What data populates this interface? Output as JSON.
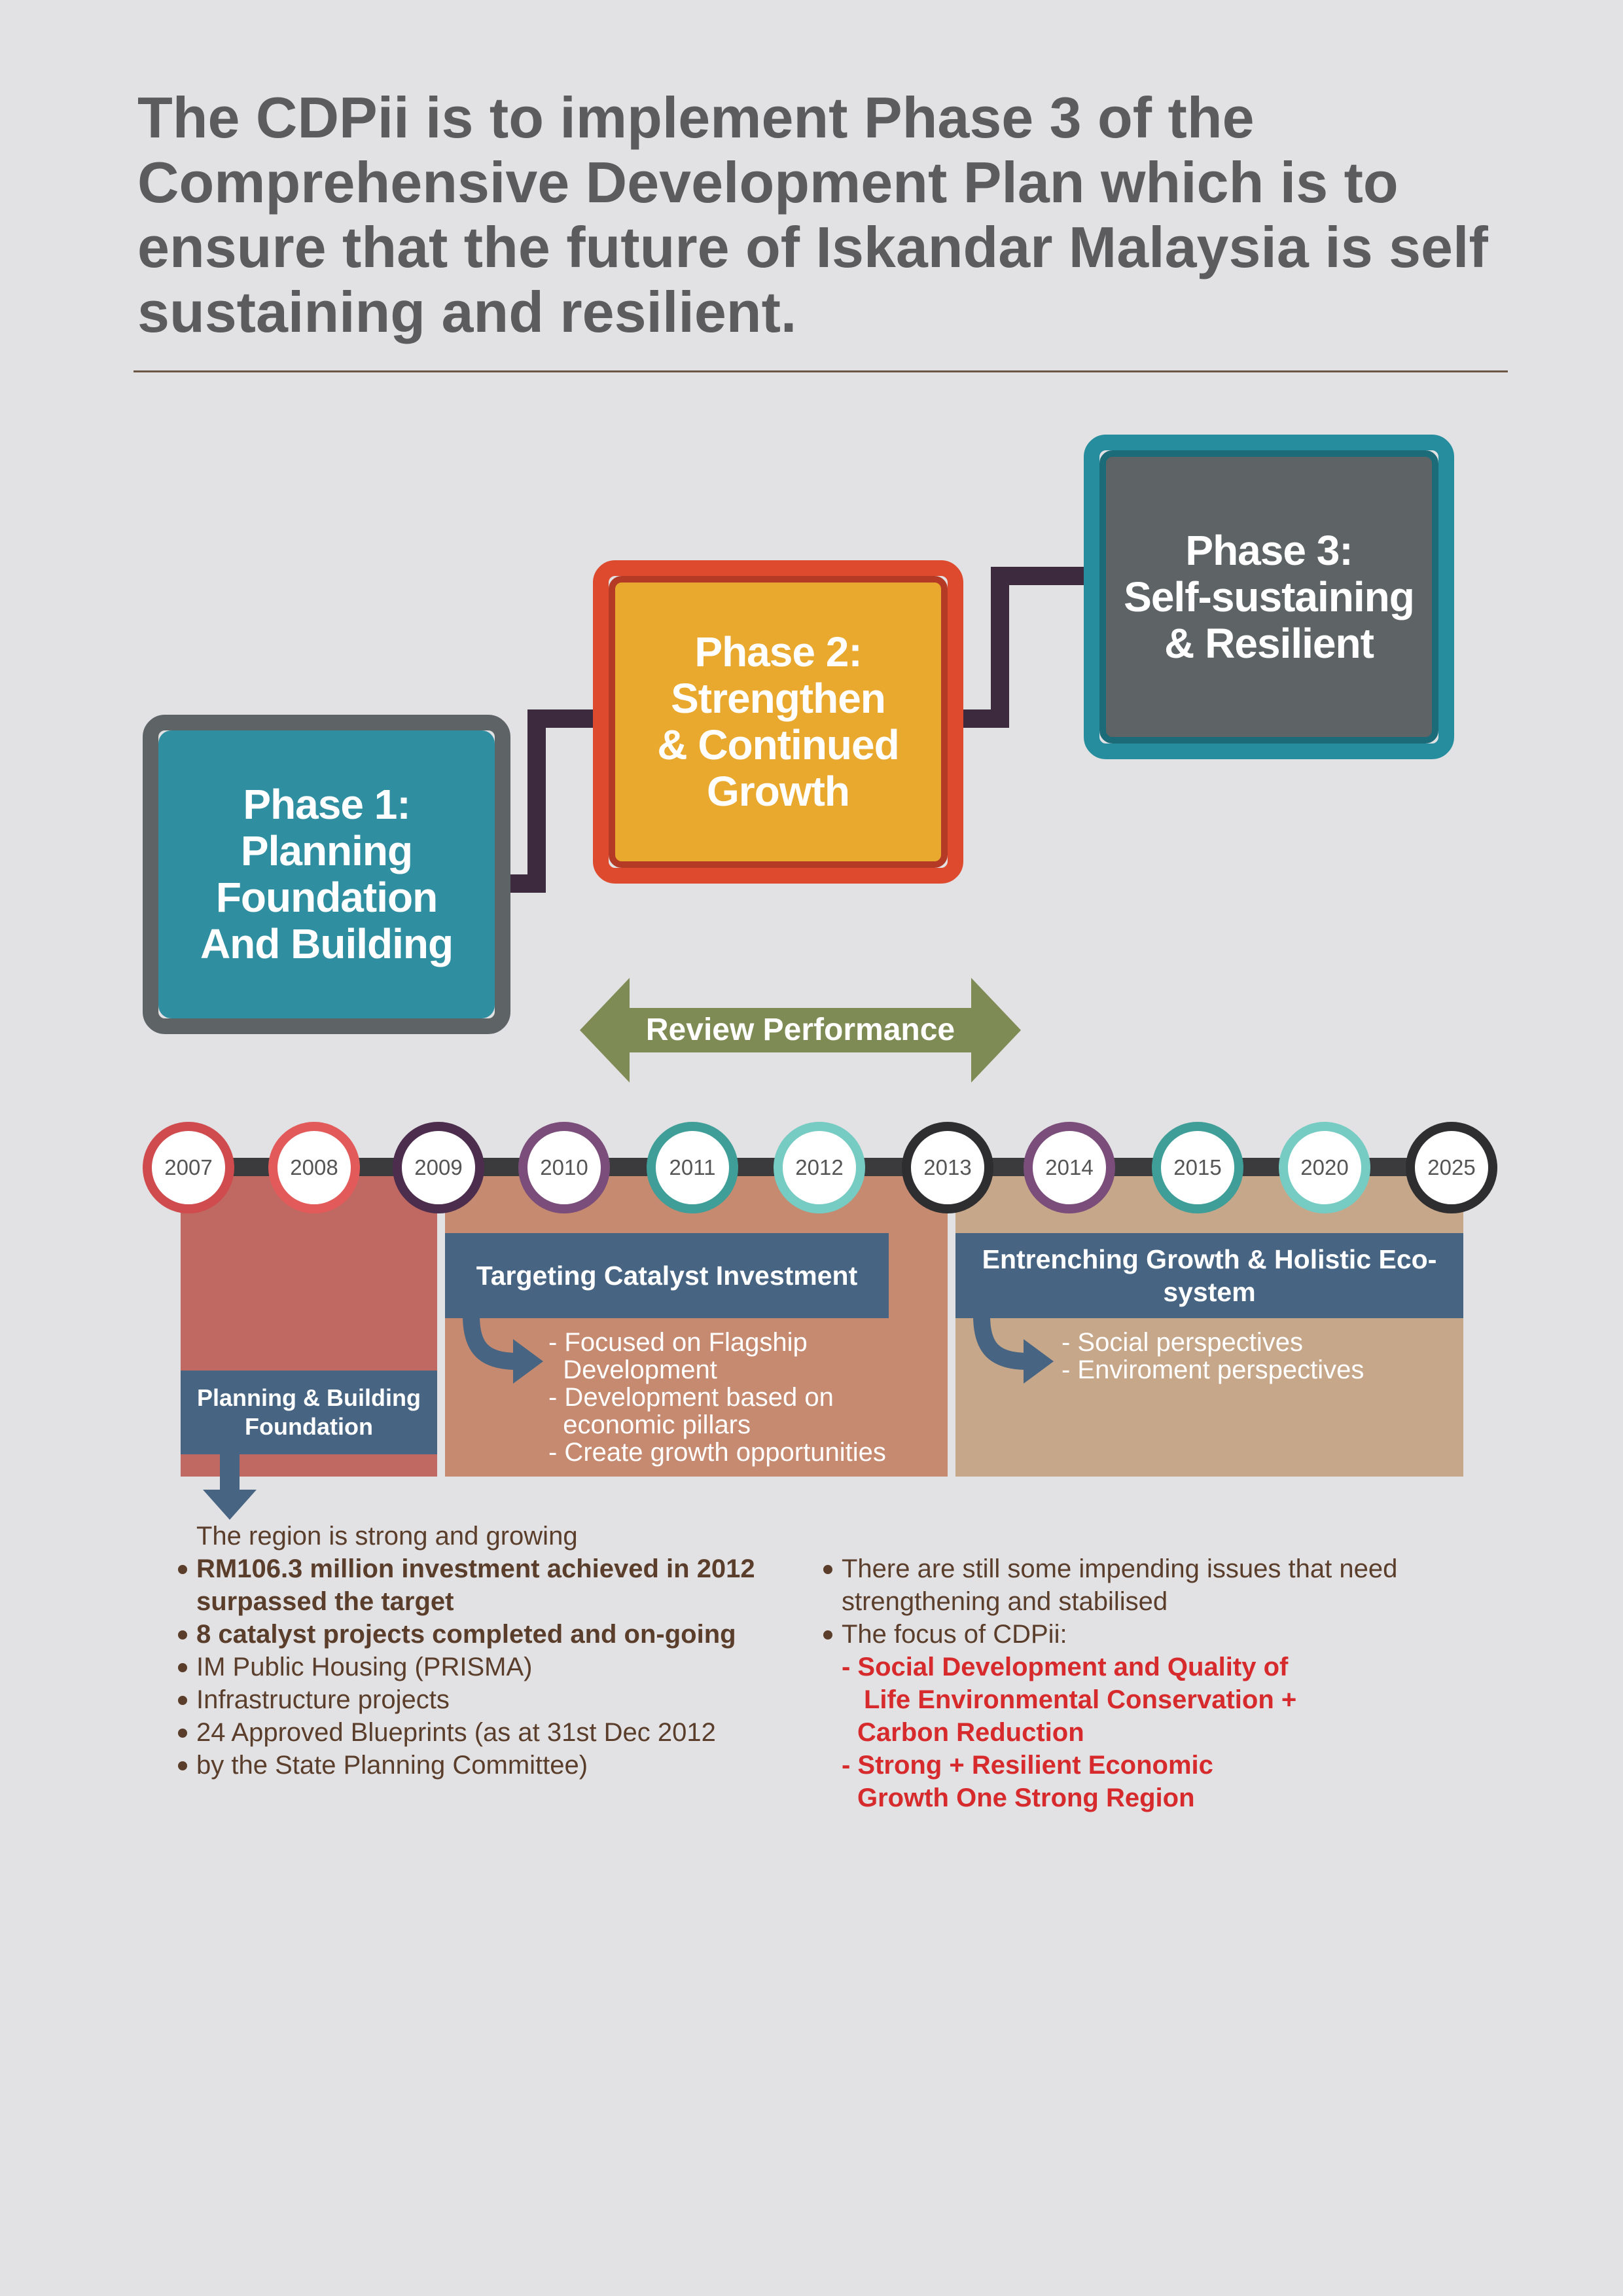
{
  "headline": "The CDPii is to implement Phase 3 of the Comprehensive Development Plan which is to ensure that the future of Iskandar Malaysia is self sustaining and resilient.",
  "phases": [
    {
      "title": "Phase 1:\nPlanning\nFoundation\nAnd Building",
      "outer_color": "#5e6466",
      "inner_color": "#2f8ea0"
    },
    {
      "title": "Phase 2:\nStrengthen\n& Continued\nGrowth",
      "outer_color": "#de4a2e",
      "inner_color": "#e9a82e"
    },
    {
      "title": "Phase 3:\nSelf-sustaining\n& Resilient",
      "outer_color": "#268d9f",
      "inner_color": "#5e6466"
    }
  ],
  "review_label": "Review Performance",
  "years": [
    {
      "label": "2007",
      "color": "#cf4b4d"
    },
    {
      "label": "2008",
      "color": "#e25a5a"
    },
    {
      "label": "2009",
      "color": "#4c2d4d"
    },
    {
      "label": "2010",
      "color": "#7a4d7a"
    },
    {
      "label": "2011",
      "color": "#3f9e97"
    },
    {
      "label": "2012",
      "color": "#76cbc2"
    },
    {
      "label": "2013",
      "color": "#2e2e30"
    },
    {
      "label": "2014",
      "color": "#7a4d7a"
    },
    {
      "label": "2015",
      "color": "#3f9e97"
    },
    {
      "label": "2020",
      "color": "#76cbc2"
    },
    {
      "label": "2025",
      "color": "#2e2e30"
    }
  ],
  "blocks": {
    "left_label": "Planning & Building Foundation",
    "mid_label": "Targeting Catalyst Investment",
    "mid_items": [
      "- Focused on Flagship",
      "  Development",
      "- Development based on",
      "  economic pillars",
      "- Create growth opportunities"
    ],
    "right_label": "Entrenching Growth & Holistic Eco-system",
    "right_items": [
      "- Social perspectives",
      "- Enviroment perspectives"
    ]
  },
  "left_list": {
    "intro": "The region is strong and growing",
    "items": [
      "RM106.3 million investment achieved in 2012",
      "surpassed the target",
      "8 catalyst projects completed and on-going",
      "IM Public Housing (PRISMA)",
      "Infrastructure projects",
      "24 Approved Blueprints (as at 31st Dec 2012",
      "by the State Planning Committee)"
    ]
  },
  "right_list": {
    "items": [
      "There are still some impending issues that need",
      "strengthening and stabilised",
      "The focus of CDPii:"
    ],
    "focus": [
      "- Social Development and Quality of",
      "Life Environmental Conservation +",
      "Carbon Reduction",
      "- Strong + Resilient Economic",
      "Growth One Strong Region"
    ]
  }
}
